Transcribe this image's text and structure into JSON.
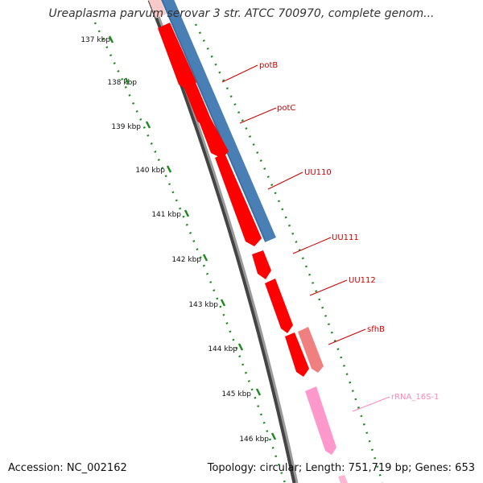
{
  "title": "Ureaplasma parvum serovar 3 str. ATCC 700970, complete genom...",
  "footer": {
    "accession_label": "Accession: NC_002162",
    "summary_label": "Topology: circular; Length: 751,719 bp; Genes: 653"
  },
  "ticks": [
    "137 kbp",
    "138 kbp",
    "139 kbp",
    "140 kbp",
    "141 kbp",
    "142 kbp",
    "143 kbp",
    "144 kbp",
    "145 kbp",
    "146 kbp"
  ],
  "genes": [
    {
      "label": "potB",
      "color": "#cc0000"
    },
    {
      "label": "potC",
      "color": "#cc0000"
    },
    {
      "label": "UU110",
      "color": "#cc0000"
    },
    {
      "label": "UU111",
      "color": "#cc0000"
    },
    {
      "label": "UU112",
      "color": "#cc0000"
    },
    {
      "label": "sfhB",
      "color": "#cc0000"
    },
    {
      "label": "rRNA_16S-1",
      "color": "#ff88bb"
    }
  ],
  "colors": {
    "cds": "#ff0000",
    "pseudo": "#f08080",
    "rrna": "#ff99cc",
    "blue_band": "#4a7fb5",
    "backbone": "#7a7a7a",
    "tick_green": "#1f8a1f"
  }
}
